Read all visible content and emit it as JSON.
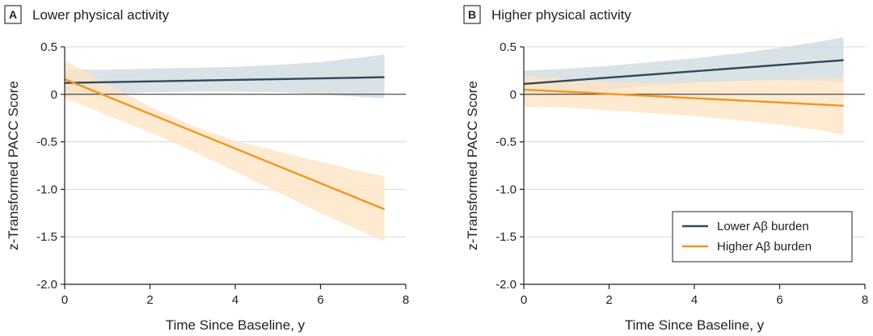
{
  "chart_data": [
    {
      "type": "line",
      "panel_letter": "A",
      "title": "Lower physical activity",
      "xlabel": "Time Since Baseline, y",
      "ylabel": "z-Transformed PACC Score",
      "xlim": [
        0,
        8
      ],
      "ylim": [
        -2.0,
        0.5
      ],
      "xticks": [
        0,
        2,
        4,
        6,
        8
      ],
      "xtick_labels": [
        "0",
        "2",
        "4",
        "6",
        "8"
      ],
      "yticks": [
        0.5,
        0,
        -0.5,
        -1.0,
        -1.5,
        -2.0
      ],
      "ytick_labels": [
        "0.5",
        "0",
        "-0.5",
        "-1.0",
        "-1.5",
        "-2.0"
      ],
      "grid": true,
      "series": [
        {
          "name": "Lower Aβ burden",
          "color": "#2e4a5a",
          "band_color": "#ccd8de",
          "x": [
            0,
            7.5
          ],
          "y": [
            0.12,
            0.18
          ],
          "ci_x": [
            0,
            1,
            2,
            3,
            4,
            5,
            6,
            7,
            7.5
          ],
          "ci_upper": [
            0.26,
            0.26,
            0.27,
            0.28,
            0.29,
            0.31,
            0.34,
            0.39,
            0.42
          ],
          "ci_lower": [
            -0.02,
            0.0,
            0.02,
            0.03,
            0.03,
            0.02,
            0.0,
            -0.03,
            -0.04
          ]
        },
        {
          "name": "Higher Aβ burden",
          "color": "#f2961e",
          "band_color": "#fde3c2",
          "x": [
            0,
            7.5
          ],
          "y": [
            0.16,
            -1.21
          ],
          "ci_x": [
            0,
            1,
            2,
            3,
            4,
            5,
            6,
            7,
            7.5
          ],
          "ci_upper": [
            0.36,
            0.11,
            -0.13,
            -0.33,
            -0.49,
            -0.6,
            -0.71,
            -0.82,
            -0.86
          ],
          "ci_lower": [
            -0.04,
            -0.22,
            -0.4,
            -0.6,
            -0.81,
            -1.03,
            -1.25,
            -1.45,
            -1.55
          ]
        }
      ]
    },
    {
      "type": "line",
      "panel_letter": "B",
      "title": "Higher physical activity",
      "xlabel": "Time Since Baseline, y",
      "ylabel": "z-Transformed PACC Score",
      "xlim": [
        0,
        8
      ],
      "ylim": [
        -2.0,
        0.5
      ],
      "xticks": [
        0,
        2,
        4,
        6,
        8
      ],
      "xtick_labels": [
        "0",
        "2",
        "4",
        "6",
        "8"
      ],
      "yticks": [
        0.5,
        0,
        -0.5,
        -1.0,
        -1.5,
        -2.0
      ],
      "ytick_labels": [
        "0.5",
        "0",
        "-0.5",
        "-1.0",
        "-1.5",
        "-2.0"
      ],
      "grid": true,
      "legend": {
        "placement": "lower-right",
        "entries": [
          "Lower Aβ burden",
          "Higher Aβ burden"
        ]
      },
      "series": [
        {
          "name": "Lower Aβ burden",
          "color": "#2e4a5a",
          "band_color": "#ccd8de",
          "x": [
            0,
            7.5
          ],
          "y": [
            0.11,
            0.36
          ],
          "ci_x": [
            0,
            1,
            2,
            3,
            4,
            5,
            6,
            7,
            7.5
          ],
          "ci_upper": [
            0.25,
            0.27,
            0.3,
            0.34,
            0.38,
            0.43,
            0.49,
            0.56,
            0.6
          ],
          "ci_lower": [
            -0.03,
            0.0,
            0.05,
            0.09,
            0.12,
            0.14,
            0.15,
            0.14,
            0.12
          ]
        },
        {
          "name": "Higher Aβ burden",
          "color": "#f2961e",
          "band_color": "#fde3c2",
          "x": [
            0,
            7.5
          ],
          "y": [
            0.05,
            -0.12
          ],
          "ci_x": [
            0,
            1,
            2,
            3,
            4,
            5,
            6,
            7,
            7.5
          ],
          "ci_upper": [
            0.2,
            0.16,
            0.13,
            0.12,
            0.13,
            0.14,
            0.15,
            0.17,
            0.18
          ],
          "ci_lower": [
            -0.13,
            -0.14,
            -0.17,
            -0.2,
            -0.23,
            -0.27,
            -0.32,
            -0.38,
            -0.43
          ]
        }
      ]
    }
  ]
}
